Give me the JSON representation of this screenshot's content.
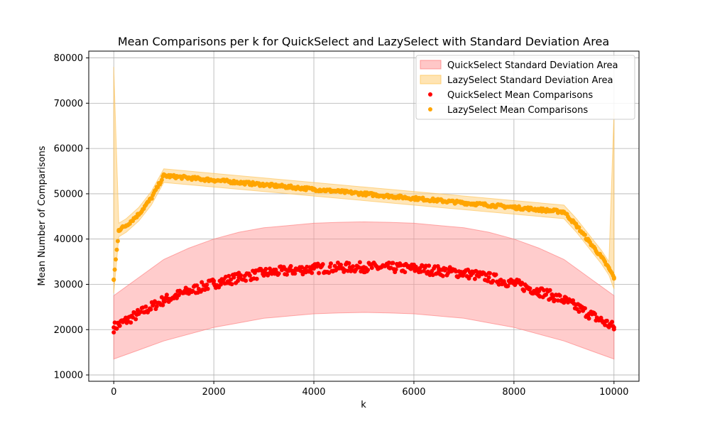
{
  "chart_data": {
    "type": "scatter",
    "title": "Mean Comparisons per k for QuickSelect and LazySelect with Standard Deviation Area",
    "xlabel": "k",
    "ylabel": "Mean Number of Comparisons",
    "xlim": [
      -500,
      10500
    ],
    "ylim": [
      8600,
      81500
    ],
    "xticks": [
      0,
      2000,
      4000,
      6000,
      8000,
      10000
    ],
    "yticks": [
      10000,
      20000,
      30000,
      40000,
      50000,
      60000,
      70000,
      80000
    ],
    "grid": true,
    "legend_position": "top-right",
    "colors": {
      "quick": "#ff0000",
      "lazy": "#ffa500",
      "quick_band": "#ff9999",
      "lazy_band": "#ffd58a"
    },
    "legend": [
      {
        "label": "QuickSelect Standard Deviation Area",
        "kind": "area",
        "series": "quick"
      },
      {
        "label": "LazySelect Standard Deviation Area",
        "kind": "area",
        "series": "lazy"
      },
      {
        "label": "QuickSelect Mean Comparisons",
        "kind": "point",
        "series": "quick"
      },
      {
        "label": "LazySelect Mean Comparisons",
        "kind": "point",
        "series": "lazy"
      }
    ],
    "series": [
      {
        "name": "QuickSelect Mean Comparisons",
        "key": "quick",
        "x": [
          0,
          250,
          500,
          1000,
          1500,
          2000,
          2500,
          3000,
          3500,
          4000,
          4500,
          5000,
          5500,
          6000,
          6500,
          7000,
          7500,
          8000,
          8500,
          9000,
          9500,
          9750,
          10000
        ],
        "y": [
          20500,
          22000,
          23500,
          26500,
          28500,
          30200,
          31500,
          32500,
          33000,
          33500,
          33700,
          33800,
          33700,
          33500,
          33000,
          32500,
          31500,
          30200,
          28500,
          26500,
          23500,
          22000,
          20500
        ],
        "std_low": [
          13500,
          14500,
          15500,
          17500,
          19000,
          20500,
          21500,
          22500,
          23000,
          23500,
          23700,
          23800,
          23700,
          23500,
          23000,
          22500,
          21500,
          20500,
          19000,
          17500,
          15500,
          14500,
          13500
        ],
        "std_high": [
          27500,
          29500,
          31500,
          35500,
          38000,
          40000,
          41500,
          42500,
          43000,
          43500,
          43700,
          43800,
          43700,
          43500,
          43000,
          42500,
          41500,
          40000,
          38000,
          35500,
          31500,
          29500,
          27500
        ]
      },
      {
        "name": "LazySelect Mean Comparisons",
        "key": "lazy",
        "x": [
          0,
          100,
          250,
          500,
          750,
          1000,
          2000,
          3000,
          4000,
          5000,
          6000,
          7000,
          8000,
          9000,
          9250,
          9500,
          9750,
          9900,
          10000
        ],
        "y": [
          31000,
          42000,
          43000,
          45500,
          49000,
          54000,
          53000,
          52000,
          51000,
          50000,
          49000,
          48000,
          47000,
          46000,
          43000,
          39500,
          36000,
          33500,
          31500
        ],
        "std_low": [
          28000,
          40500,
          41500,
          44000,
          47500,
          52500,
          51500,
          50500,
          49500,
          48500,
          47500,
          46500,
          45500,
          44500,
          41500,
          38000,
          34500,
          32000,
          29000
        ],
        "std_high": [
          78000,
          43500,
          44500,
          47000,
          50500,
          55500,
          54500,
          53500,
          52500,
          51500,
          50500,
          49500,
          48500,
          47500,
          44500,
          41000,
          37500,
          35000,
          68000
        ]
      }
    ]
  }
}
